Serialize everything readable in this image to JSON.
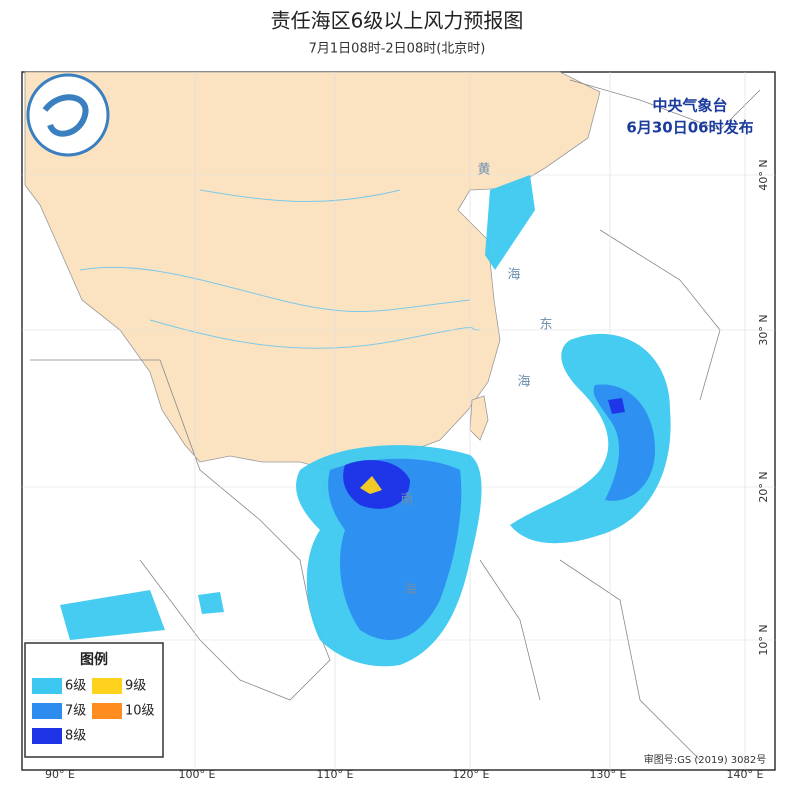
{
  "header": {
    "title": "责任海区6级以上风力预报图",
    "subtitle": "7月1日08时-2日08时(北京时)"
  },
  "issuer": {
    "name": "中央气象台",
    "time": "6月30日06时发布"
  },
  "legend": {
    "title": "图例",
    "items": [
      {
        "label": "6级",
        "color": "#3cc8f0"
      },
      {
        "label": "9级",
        "color": "#ffd21e"
      },
      {
        "label": "7级",
        "color": "#2d8cf0"
      },
      {
        "label": "10级",
        "color": "#ff8c1e"
      },
      {
        "label": "8级",
        "color": "#1e32e6"
      }
    ]
  },
  "axes": {
    "longitude": [
      "90° E",
      "100° E",
      "110° E",
      "120° E",
      "130° E",
      "140° E"
    ],
    "latitude": [
      "40° N",
      "30° N",
      "20° N",
      "10° N"
    ]
  },
  "sea_labels": [
    "黄",
    "海",
    "东",
    "海",
    "南",
    "海"
  ],
  "approval": "审图号:GS (2019) 3082号"
}
